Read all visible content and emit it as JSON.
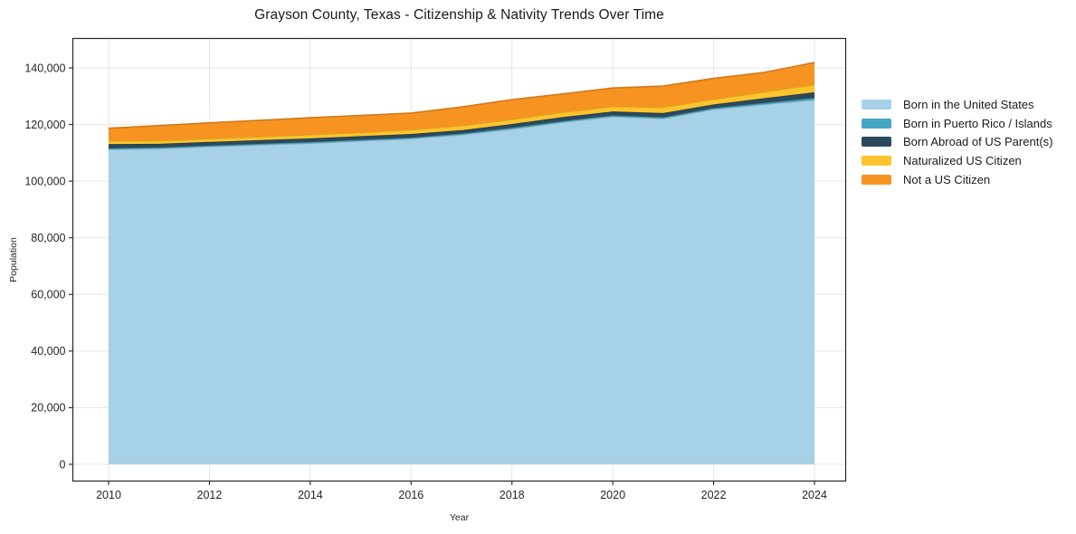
{
  "title": "Grayson County, Texas - Citizenship & Nativity Trends Over Time",
  "chart_data": {
    "type": "area",
    "stacked": true,
    "title": "Grayson County, Texas - Citizenship & Nativity Trends Over Time",
    "xlabel": "Year",
    "ylabel": "Population",
    "grid": true,
    "legend_position": "right-outside",
    "xlim": [
      2009.3,
      2024.6
    ],
    "ylim": [
      0,
      150000
    ],
    "x": [
      2010,
      2011,
      2012,
      2013,
      2014,
      2015,
      2016,
      2017,
      2018,
      2019,
      2020,
      2021,
      2022,
      2023,
      2024
    ],
    "x_ticks": {
      "values": [
        2010,
        2012,
        2014,
        2016,
        2018,
        2020,
        2022,
        2024
      ],
      "labels": [
        "2010",
        "2012",
        "2014",
        "2016",
        "2018",
        "2020",
        "2022",
        "2024"
      ]
    },
    "y_ticks": {
      "values": [
        0,
        20000,
        40000,
        60000,
        80000,
        100000,
        120000,
        140000
      ],
      "labels": [
        "0",
        "20,000",
        "40,000",
        "60,000",
        "80,000",
        "100,000",
        "120,000",
        "140,000"
      ]
    },
    "series": [
      {
        "name": "Born in the United States",
        "slug": "born-in-us",
        "color": "#a6d1e6",
        "values": [
          111200,
          111500,
          112200,
          112800,
          113400,
          114200,
          115000,
          116400,
          118400,
          120800,
          122800,
          122100,
          125400,
          127100,
          128700
        ]
      },
      {
        "name": "Born in Puerto Rico / Islands",
        "slug": "puerto-rico-islands",
        "color": "#46a5c5",
        "values": [
          400,
          400,
          350,
          400,
          400,
          400,
          350,
          400,
          450,
          400,
          400,
          450,
          400,
          500,
          700
        ]
      },
      {
        "name": "Born Abroad of US Parent(s)",
        "slug": "born-abroad",
        "color": "#2b4a5c",
        "values": [
          1500,
          1300,
          1300,
          1300,
          1300,
          1300,
          1300,
          1200,
          1350,
          1400,
          1400,
          1500,
          1300,
          1700,
          2000
        ]
      },
      {
        "name": "Naturalized US Citizen",
        "slug": "naturalized",
        "color": "#fdc42d",
        "values": [
          1100,
          1100,
          1150,
          1200,
          1300,
          1300,
          1500,
          1600,
          1600,
          1700,
          1800,
          2000,
          1900,
          2200,
          2700
        ]
      },
      {
        "name": "Not a US Citizen",
        "slug": "not-citizen",
        "color": "#f79321",
        "values": [
          4500,
          5300,
          5600,
          5800,
          6000,
          6000,
          5900,
          6600,
          7000,
          6500,
          6500,
          7550,
          7300,
          6900,
          7800
        ]
      }
    ],
    "colors": {
      "axis": "#262626",
      "grid": "#e6e6e6",
      "text": "#262626",
      "background": "#ffffff"
    }
  }
}
